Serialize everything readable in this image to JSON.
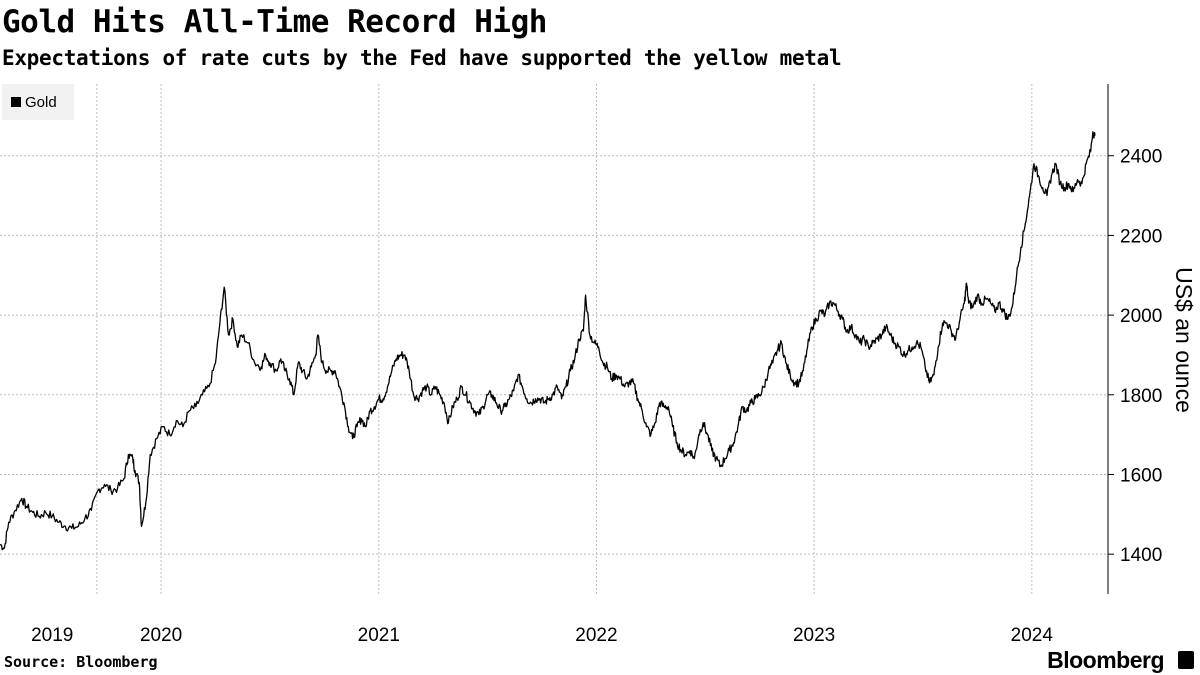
{
  "title": "Gold Hits All-Time Record High",
  "subtitle": "Expectations of rate cuts by the Fed have supported the yellow metal",
  "source": "Source: Bloomberg",
  "brand": "Bloomberg",
  "colors": {
    "line": "#000000",
    "grid": "#bdbdbd",
    "legend_bg": "#f2f2f2"
  },
  "chart_data": {
    "type": "line",
    "title": "Gold Hits All-Time Record High",
    "subtitle": "Expectations of rate cuts by the Fed have supported the yellow metal",
    "ylabel": "US$ an ounce",
    "xlabel": "",
    "legend": {
      "entries": [
        "Gold"
      ],
      "position": "top-left"
    },
    "ylim": [
      1300,
      2580
    ],
    "yticks": [
      1400,
      1600,
      1800,
      2000,
      2200,
      2400
    ],
    "xlim": [
      2019.26,
      2024.35
    ],
    "xticks": [
      {
        "label": "2019",
        "value": 2019.5
      },
      {
        "label": "2020",
        "value": 2020.0
      },
      {
        "label": "2021",
        "value": 2021.0
      },
      {
        "label": "2022",
        "value": 2022.0
      },
      {
        "label": "2023",
        "value": 2023.0
      },
      {
        "label": "2024",
        "value": 2024.0
      }
    ],
    "xgrid": [
      2019.705,
      2020.0,
      2021.0,
      2022.0,
      2023.0,
      2024.0
    ],
    "series": [
      {
        "name": "Gold",
        "points": [
          [
            2019.26,
            1425
          ],
          [
            2019.28,
            1415
          ],
          [
            2019.3,
            1480
          ],
          [
            2019.33,
            1510
          ],
          [
            2019.36,
            1540
          ],
          [
            2019.38,
            1520
          ],
          [
            2019.41,
            1505
          ],
          [
            2019.44,
            1495
          ],
          [
            2019.47,
            1505
          ],
          [
            2019.5,
            1495
          ],
          [
            2019.53,
            1480
          ],
          [
            2019.56,
            1470
          ],
          [
            2019.59,
            1465
          ],
          [
            2019.62,
            1470
          ],
          [
            2019.65,
            1490
          ],
          [
            2019.68,
            1510
          ],
          [
            2019.71,
            1560
          ],
          [
            2019.74,
            1575
          ],
          [
            2019.77,
            1560
          ],
          [
            2019.8,
            1565
          ],
          [
            2019.83,
            1590
          ],
          [
            2019.85,
            1650
          ],
          [
            2019.87,
            1640
          ],
          [
            2019.88,
            1610
          ],
          [
            2019.9,
            1580
          ],
          [
            2019.91,
            1470
          ],
          [
            2019.93,
            1530
          ],
          [
            2019.95,
            1650
          ],
          [
            2019.98,
            1690
          ],
          [
            2020.01,
            1720
          ],
          [
            2020.04,
            1700
          ],
          [
            2020.07,
            1735
          ],
          [
            2020.1,
            1720
          ],
          [
            2020.13,
            1760
          ],
          [
            2020.16,
            1770
          ],
          [
            2020.19,
            1800
          ],
          [
            2020.22,
            1820
          ],
          [
            2020.25,
            1880
          ],
          [
            2020.27,
            1980
          ],
          [
            2020.29,
            2070
          ],
          [
            2020.31,
            1950
          ],
          [
            2020.33,
            1990
          ],
          [
            2020.35,
            1920
          ],
          [
            2020.37,
            1950
          ],
          [
            2020.4,
            1930
          ],
          [
            2020.43,
            1880
          ],
          [
            2020.46,
            1870
          ],
          [
            2020.48,
            1900
          ],
          [
            2020.5,
            1880
          ],
          [
            2020.53,
            1860
          ],
          [
            2020.55,
            1890
          ],
          [
            2020.57,
            1860
          ],
          [
            2020.59,
            1840
          ],
          [
            2020.61,
            1800
          ],
          [
            2020.63,
            1880
          ],
          [
            2020.65,
            1860
          ],
          [
            2020.67,
            1840
          ],
          [
            2020.69,
            1870
          ],
          [
            2020.71,
            1900
          ],
          [
            2020.72,
            1950
          ],
          [
            2020.74,
            1880
          ],
          [
            2020.76,
            1860
          ],
          [
            2020.78,
            1860
          ],
          [
            2020.8,
            1860
          ],
          [
            2020.82,
            1820
          ],
          [
            2020.84,
            1780
          ],
          [
            2020.86,
            1720
          ],
          [
            2020.88,
            1690
          ],
          [
            2020.9,
            1720
          ],
          [
            2020.92,
            1740
          ],
          [
            2020.94,
            1720
          ],
          [
            2020.96,
            1760
          ],
          [
            2020.98,
            1770
          ],
          [
            2021.0,
            1790
          ],
          [
            2021.02,
            1790
          ],
          [
            2021.04,
            1820
          ],
          [
            2021.06,
            1860
          ],
          [
            2021.08,
            1890
          ],
          [
            2021.1,
            1900
          ],
          [
            2021.12,
            1900
          ],
          [
            2021.14,
            1860
          ],
          [
            2021.16,
            1800
          ],
          [
            2021.18,
            1790
          ],
          [
            2021.2,
            1810
          ],
          [
            2021.22,
            1820
          ],
          [
            2021.24,
            1800
          ],
          [
            2021.26,
            1820
          ],
          [
            2021.28,
            1800
          ],
          [
            2021.3,
            1780
          ],
          [
            2021.32,
            1730
          ],
          [
            2021.34,
            1770
          ],
          [
            2021.36,
            1790
          ],
          [
            2021.38,
            1820
          ],
          [
            2021.4,
            1800
          ],
          [
            2021.42,
            1780
          ],
          [
            2021.44,
            1760
          ],
          [
            2021.46,
            1750
          ],
          [
            2021.48,
            1770
          ],
          [
            2021.5,
            1800
          ],
          [
            2021.52,
            1800
          ],
          [
            2021.54,
            1780
          ],
          [
            2021.56,
            1760
          ],
          [
            2021.58,
            1770
          ],
          [
            2021.6,
            1790
          ],
          [
            2021.62,
            1810
          ],
          [
            2021.64,
            1850
          ],
          [
            2021.66,
            1820
          ],
          [
            2021.68,
            1790
          ],
          [
            2021.7,
            1780
          ],
          [
            2021.72,
            1790
          ],
          [
            2021.74,
            1790
          ],
          [
            2021.76,
            1780
          ],
          [
            2021.78,
            1790
          ],
          [
            2021.8,
            1800
          ],
          [
            2021.82,
            1820
          ],
          [
            2021.84,
            1790
          ],
          [
            2021.86,
            1820
          ],
          [
            2021.88,
            1860
          ],
          [
            2021.9,
            1890
          ],
          [
            2021.92,
            1940
          ],
          [
            2021.94,
            1960
          ],
          [
            2021.95,
            2050
          ],
          [
            2021.97,
            1950
          ],
          [
            2021.99,
            1930
          ],
          [
            2022.01,
            1920
          ],
          [
            2022.03,
            1880
          ],
          [
            2022.05,
            1870
          ],
          [
            2022.07,
            1840
          ],
          [
            2022.09,
            1850
          ],
          [
            2022.11,
            1840
          ],
          [
            2022.13,
            1820
          ],
          [
            2022.15,
            1830
          ],
          [
            2022.17,
            1830
          ],
          [
            2022.19,
            1790
          ],
          [
            2022.21,
            1760
          ],
          [
            2022.23,
            1720
          ],
          [
            2022.25,
            1700
          ],
          [
            2022.27,
            1730
          ],
          [
            2022.29,
            1780
          ],
          [
            2022.31,
            1770
          ],
          [
            2022.33,
            1770
          ],
          [
            2022.35,
            1720
          ],
          [
            2022.37,
            1680
          ],
          [
            2022.39,
            1660
          ],
          [
            2022.41,
            1650
          ],
          [
            2022.43,
            1660
          ],
          [
            2022.45,
            1640
          ],
          [
            2022.47,
            1700
          ],
          [
            2022.49,
            1730
          ],
          [
            2022.51,
            1700
          ],
          [
            2022.53,
            1660
          ],
          [
            2022.55,
            1640
          ],
          [
            2022.57,
            1620
          ],
          [
            2022.59,
            1640
          ],
          [
            2022.61,
            1660
          ],
          [
            2022.63,
            1680
          ],
          [
            2022.65,
            1720
          ],
          [
            2022.67,
            1770
          ],
          [
            2022.69,
            1760
          ],
          [
            2022.71,
            1780
          ],
          [
            2022.73,
            1790
          ],
          [
            2022.75,
            1800
          ],
          [
            2022.77,
            1820
          ],
          [
            2022.79,
            1860
          ],
          [
            2022.81,
            1880
          ],
          [
            2022.83,
            1910
          ],
          [
            2022.85,
            1930
          ],
          [
            2022.87,
            1880
          ],
          [
            2022.89,
            1850
          ],
          [
            2022.91,
            1830
          ],
          [
            2022.93,
            1830
          ],
          [
            2022.95,
            1860
          ],
          [
            2022.97,
            1920
          ],
          [
            2022.99,
            1970
          ],
          [
            2023.01,
            1990
          ],
          [
            2023.03,
            2010
          ],
          [
            2023.05,
            2000
          ],
          [
            2023.07,
            2030
          ],
          [
            2023.09,
            2030
          ],
          [
            2023.11,
            2010
          ],
          [
            2023.13,
            1990
          ],
          [
            2023.15,
            1960
          ],
          [
            2023.17,
            1970
          ],
          [
            2023.19,
            1950
          ],
          [
            2023.21,
            1930
          ],
          [
            2023.23,
            1940
          ],
          [
            2023.25,
            1920
          ],
          [
            2023.27,
            1930
          ],
          [
            2023.29,
            1940
          ],
          [
            2023.31,
            1950
          ],
          [
            2023.33,
            1970
          ],
          [
            2023.35,
            1950
          ],
          [
            2023.37,
            1930
          ],
          [
            2023.39,
            1920
          ],
          [
            2023.41,
            1900
          ],
          [
            2023.43,
            1910
          ],
          [
            2023.45,
            1920
          ],
          [
            2023.47,
            1930
          ],
          [
            2023.49,
            1920
          ],
          [
            2023.51,
            1870
          ],
          [
            2023.53,
            1830
          ],
          [
            2023.55,
            1850
          ],
          [
            2023.57,
            1920
          ],
          [
            2023.59,
            1980
          ],
          [
            2023.61,
            1980
          ],
          [
            2023.63,
            1960
          ],
          [
            2023.65,
            1940
          ],
          [
            2023.67,
            1990
          ],
          [
            2023.69,
            2030
          ],
          [
            2023.7,
            2080
          ],
          [
            2023.71,
            2030
          ],
          [
            2023.73,
            2020
          ],
          [
            2023.75,
            2050
          ],
          [
            2023.77,
            2030
          ],
          [
            2023.79,
            2040
          ],
          [
            2023.81,
            2030
          ],
          [
            2023.83,
            2010
          ],
          [
            2023.85,
            2030
          ],
          [
            2023.87,
            2010
          ],
          [
            2023.89,
            1990
          ],
          [
            2023.91,
            2020
          ],
          [
            2023.93,
            2100
          ],
          [
            2023.95,
            2170
          ],
          [
            2023.97,
            2230
          ],
          [
            2023.99,
            2300
          ],
          [
            2024.01,
            2380
          ],
          [
            2024.03,
            2350
          ],
          [
            2024.05,
            2320
          ],
          [
            2024.07,
            2300
          ],
          [
            2024.09,
            2350
          ],
          [
            2024.11,
            2380
          ],
          [
            2024.13,
            2330
          ],
          [
            2024.15,
            2320
          ],
          [
            2024.17,
            2330
          ],
          [
            2024.19,
            2310
          ],
          [
            2024.21,
            2340
          ],
          [
            2024.23,
            2330
          ],
          [
            2024.25,
            2380
          ],
          [
            2024.27,
            2410
          ],
          [
            2024.28,
            2460
          ],
          [
            2024.29,
            2450
          ]
        ]
      }
    ]
  }
}
